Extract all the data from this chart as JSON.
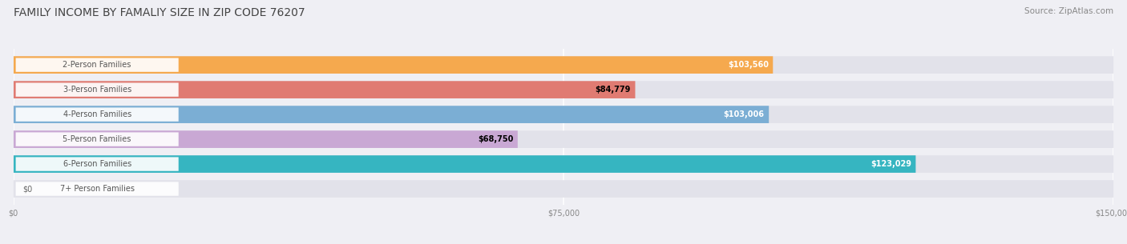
{
  "title": "FAMILY INCOME BY FAMALIY SIZE IN ZIP CODE 76207",
  "source": "Source: ZipAtlas.com",
  "categories": [
    "2-Person Families",
    "3-Person Families",
    "4-Person Families",
    "5-Person Families",
    "6-Person Families",
    "7+ Person Families"
  ],
  "values": [
    103560,
    84779,
    103006,
    68750,
    123029,
    0
  ],
  "bar_colors": [
    "#F5A94E",
    "#E07B72",
    "#7BAED4",
    "#C9A8D4",
    "#36B5C1",
    "#C5CAE9"
  ],
  "label_colors": [
    "white",
    "black",
    "white",
    "black",
    "white",
    "black"
  ],
  "labels": [
    "$103,560",
    "$84,779",
    "$103,006",
    "$68,750",
    "$123,029",
    "$0"
  ],
  "xlim": [
    0,
    150000
  ],
  "xticks": [
    0,
    75000,
    150000
  ],
  "xticklabels": [
    "$0",
    "$75,000",
    "$150,000"
  ],
  "background_color": "#efeff4",
  "bar_bg_color": "#e2e2ea",
  "title_fontsize": 10,
  "source_fontsize": 7.5,
  "label_fontsize": 7,
  "category_fontsize": 7,
  "rounding_size": 0.32
}
